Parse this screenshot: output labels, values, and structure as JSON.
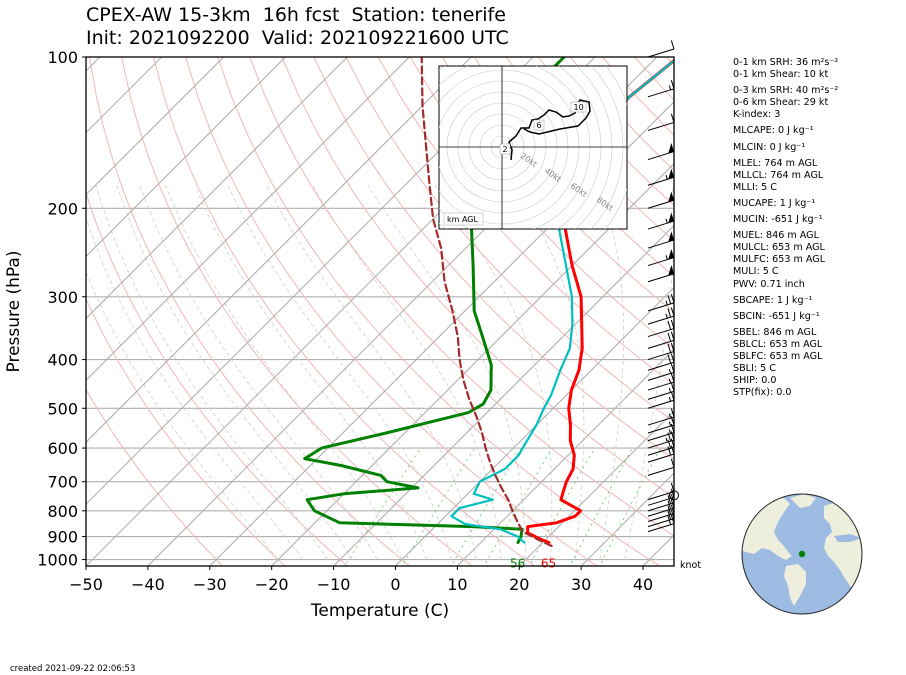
{
  "title": {
    "line1": "CPEX-AW 15-3km  16h fcst  Station: tenerife",
    "line2": "Init: 2021092200  Valid: 202109221600 UTC"
  },
  "chart_data": {
    "type": "line",
    "subtype": "skew-T log-P",
    "xlabel": "Temperature (C)",
    "ylabel": "Pressure (hPa)",
    "xlim": [
      -50,
      45
    ],
    "ylim": [
      1030,
      100
    ],
    "y_scale": "log",
    "x_ticks": [
      "−50",
      "−40",
      "−30",
      "−20",
      "−10",
      "0",
      "10",
      "20",
      "30",
      "40"
    ],
    "y_ticks": [
      "100",
      "200",
      "300",
      "400",
      "500",
      "600",
      "700",
      "800",
      "900",
      "1000"
    ],
    "wind_unit_label": "knot",
    "surface_labels": {
      "dewpoint": "56",
      "temperature": "65"
    },
    "series": [
      {
        "role": "temperature",
        "color": "#ff0000",
        "points": [
          [
            925,
            21
          ],
          [
            910,
            19
          ],
          [
            885,
            16
          ],
          [
            860,
            15
          ],
          [
            845,
            19
          ],
          [
            820,
            21
          ],
          [
            800,
            21
          ],
          [
            760,
            16
          ],
          [
            730,
            15
          ],
          [
            700,
            14
          ],
          [
            660,
            13
          ],
          [
            620,
            11
          ],
          [
            580,
            8
          ],
          [
            540,
            5.5
          ],
          [
            500,
            2.5
          ],
          [
            460,
            0
          ],
          [
            420,
            -2
          ],
          [
            380,
            -5
          ],
          [
            340,
            -9
          ],
          [
            300,
            -13.5
          ],
          [
            260,
            -20
          ],
          [
            220,
            -27
          ],
          [
            190,
            -32
          ],
          [
            160,
            -36
          ],
          [
            140,
            -38
          ],
          [
            120,
            -38
          ],
          [
            100,
            -36.5
          ]
        ]
      },
      {
        "role": "dewpoint",
        "color": "#008000",
        "points": [
          [
            925,
            16
          ],
          [
            900,
            15.5
          ],
          [
            870,
            14.5
          ],
          [
            860,
            6
          ],
          [
            845,
            -16
          ],
          [
            800,
            -22
          ],
          [
            760,
            -25
          ],
          [
            740,
            -20
          ],
          [
            720,
            -9
          ],
          [
            700,
            -15
          ],
          [
            680,
            -17
          ],
          [
            650,
            -25
          ],
          [
            630,
            -32
          ],
          [
            600,
            -31
          ],
          [
            560,
            -23
          ],
          [
            510,
            -13
          ],
          [
            490,
            -12
          ],
          [
            460,
            -13
          ],
          [
            410,
            -17
          ],
          [
            360,
            -23
          ],
          [
            320,
            -28.5
          ],
          [
            260,
            -36
          ],
          [
            215,
            -43
          ],
          [
            190,
            -46
          ],
          [
            160,
            -50
          ],
          [
            140,
            -53
          ],
          [
            120,
            -55
          ],
          [
            100,
            -55
          ]
        ]
      },
      {
        "role": "wet-bulb",
        "color": "#00bfbf",
        "points": [
          [
            925,
            17
          ],
          [
            900,
            15
          ],
          [
            870,
            11
          ],
          [
            850,
            4.5
          ],
          [
            820,
            1
          ],
          [
            790,
            1
          ],
          [
            760,
            5
          ],
          [
            740,
            1
          ],
          [
            700,
            0
          ],
          [
            660,
            2
          ],
          [
            620,
            2
          ],
          [
            580,
            1
          ],
          [
            540,
            0
          ],
          [
            500,
            -1.5
          ],
          [
            470,
            -2.5
          ],
          [
            420,
            -5
          ],
          [
            380,
            -7
          ],
          [
            340,
            -10.5
          ],
          [
            300,
            -15
          ],
          [
            260,
            -21
          ],
          [
            220,
            -28
          ],
          [
            190,
            -32
          ],
          [
            160,
            -36
          ],
          [
            140,
            -38
          ],
          [
            120,
            -38
          ],
          [
            100,
            -36.5
          ]
        ]
      },
      {
        "role": "parcel",
        "color": "#a52a2a",
        "points": [
          [
            940,
            22
          ],
          [
            910,
            18.5
          ],
          [
            880,
            15
          ],
          [
            840,
            12.5
          ],
          [
            800,
            10
          ],
          [
            760,
            7.5
          ],
          [
            720,
            4.5
          ],
          [
            680,
            1.5
          ],
          [
            640,
            -1.5
          ],
          [
            600,
            -4.5
          ],
          [
            560,
            -7.5
          ],
          [
            520,
            -11
          ],
          [
            480,
            -15
          ],
          [
            440,
            -19
          ],
          [
            400,
            -23
          ],
          [
            360,
            -27
          ],
          [
            320,
            -32
          ],
          [
            280,
            -38
          ],
          [
            240,
            -44
          ],
          [
            210,
            -50
          ],
          [
            180,
            -56
          ],
          [
            150,
            -63
          ],
          [
            125,
            -70
          ],
          [
            100,
            -78
          ]
        ]
      }
    ],
    "wind_barbs": [
      {
        "p": 100,
        "kt": 10
      },
      {
        "p": 120,
        "kt": 15
      },
      {
        "p": 140,
        "kt": 10
      },
      {
        "p": 160,
        "kt": 50
      },
      {
        "p": 180,
        "kt": 55
      },
      {
        "p": 200,
        "kt": 50
      },
      {
        "p": 220,
        "kt": 55
      },
      {
        "p": 240,
        "kt": 50
      },
      {
        "p": 260,
        "kt": 55
      },
      {
        "p": 280,
        "kt": 50
      },
      {
        "p": 320,
        "kt": 25
      },
      {
        "p": 340,
        "kt": 25
      },
      {
        "p": 360,
        "kt": 20
      },
      {
        "p": 380,
        "kt": 20
      },
      {
        "p": 400,
        "kt": 20
      },
      {
        "p": 420,
        "kt": 20
      },
      {
        "p": 440,
        "kt": 15
      },
      {
        "p": 460,
        "kt": 15
      },
      {
        "p": 480,
        "kt": 15
      },
      {
        "p": 500,
        "kt": 15
      },
      {
        "p": 540,
        "kt": 15
      },
      {
        "p": 560,
        "kt": 15
      },
      {
        "p": 580,
        "kt": 15
      },
      {
        "p": 600,
        "kt": 25
      },
      {
        "p": 620,
        "kt": 20
      },
      {
        "p": 640,
        "kt": 20
      },
      {
        "p": 680,
        "kt": 10
      },
      {
        "p": 760,
        "kt": 10
      },
      {
        "p": 780,
        "kt": 15
      },
      {
        "p": 800,
        "kt": 20
      },
      {
        "p": 820,
        "kt": 20
      },
      {
        "p": 840,
        "kt": 20
      },
      {
        "p": 860,
        "kt": 20
      },
      {
        "p": 880,
        "kt": 20
      }
    ],
    "hodograph": {
      "ring_labels": [
        "20kt",
        "40kt",
        "60kt",
        "80kt"
      ],
      "height_labels": [
        "2",
        "6",
        "10"
      ],
      "legend": "km AGL"
    }
  },
  "params": [
    {
      "text": "0-1 km SRH: 36 m²s⁻²",
      "gap": false
    },
    {
      "text": "0-1 km Shear: 10 kt",
      "gap": false
    },
    {
      "text": "0-3 km SRH: 40 m²s⁻²",
      "gap": true
    },
    {
      "text": "0-6 km Shear: 29 kt",
      "gap": false
    },
    {
      "text": "K-index: 3",
      "gap": false
    },
    {
      "text": "MLCAPE: 0 J kg⁻¹",
      "gap": true
    },
    {
      "text": "MLCIN: 0 J kg⁻¹",
      "gap": true
    },
    {
      "text": "MLEL: 764 m AGL",
      "gap": true
    },
    {
      "text": "MLLCL: 764 m AGL",
      "gap": false
    },
    {
      "text": "MLLI: 5 C",
      "gap": false
    },
    {
      "text": "MUCAPE: 1 J kg⁻¹",
      "gap": true
    },
    {
      "text": "MUCIN: -651 J kg⁻¹",
      "gap": true
    },
    {
      "text": "MUEL: 846 m AGL",
      "gap": true
    },
    {
      "text": "MULCL: 653 m AGL",
      "gap": false
    },
    {
      "text": "MULFC: 653 m AGL",
      "gap": false
    },
    {
      "text": "MULI: 5 C",
      "gap": false
    },
    {
      "text": "PWV: 0.71 inch",
      "gap": false
    },
    {
      "text": "SBCAPE: 1 J kg⁻¹",
      "gap": true
    },
    {
      "text": "SBCIN: -651 J kg⁻¹",
      "gap": true
    },
    {
      "text": "SBEL: 846 m AGL",
      "gap": true
    },
    {
      "text": "SBLCL: 653 m AGL",
      "gap": false
    },
    {
      "text": "SBLFC: 653 m AGL",
      "gap": false
    },
    {
      "text": "SBLI: 5 C",
      "gap": false
    },
    {
      "text": "SHIP: 0.0",
      "gap": false
    },
    {
      "text": "STP(fix): 0.0",
      "gap": false
    }
  ],
  "footer": "created 2021-09-22 02:06:53",
  "colors": {
    "isotherm": "#b0b0b0",
    "dry_adiabat": "#f4b6b6",
    "moist_adiabat": "#cfcfcf",
    "mixing_ratio": "#7ccf7c",
    "land": "#eeeedd",
    "ocean": "#9dbbe3",
    "station": "#008000"
  }
}
